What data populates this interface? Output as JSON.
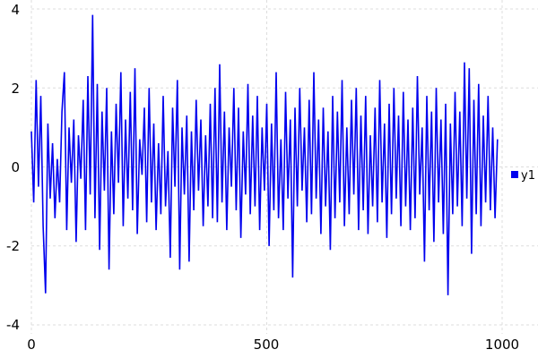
{
  "chart_data": {
    "type": "line",
    "title": "",
    "xlabel": "",
    "ylabel": "",
    "xlim": [
      0,
      1000
    ],
    "ylim": [
      -4,
      4
    ],
    "x_ticks": [
      "0",
      "500",
      "1000"
    ],
    "y_ticks": [
      "-4",
      "-2",
      "0",
      "2",
      "4"
    ],
    "grid": true,
    "legend_position": "right",
    "series": [
      {
        "name": "y1",
        "color": "#0000ee",
        "x_step": 5,
        "values": [
          0.9,
          -0.9,
          2.2,
          -0.5,
          1.8,
          -1.5,
          -3.2,
          1.1,
          -0.8,
          0.6,
          -1.3,
          0.2,
          -0.9,
          1.4,
          2.4,
          -1.6,
          1.0,
          -0.4,
          1.2,
          -1.9,
          0.8,
          -0.3,
          1.7,
          -1.6,
          2.3,
          -0.7,
          3.85,
          -1.3,
          2.1,
          -2.1,
          1.4,
          -0.6,
          2.0,
          -2.6,
          0.9,
          -1.2,
          1.6,
          -0.4,
          2.4,
          -1.5,
          1.2,
          -0.8,
          1.9,
          -1.1,
          2.5,
          -1.7,
          0.7,
          -0.2,
          1.5,
          -1.4,
          2.0,
          -0.9,
          1.1,
          -1.6,
          0.6,
          -1.2,
          1.8,
          -1.0,
          0.4,
          -2.3,
          1.5,
          -0.5,
          2.2,
          -2.6,
          1.0,
          -0.7,
          1.3,
          -2.4,
          0.9,
          -1.1,
          1.7,
          -0.6,
          1.2,
          -1.5,
          0.8,
          -1.0,
          1.6,
          -1.3,
          2.0,
          -1.4,
          2.6,
          -0.9,
          1.4,
          -1.6,
          1.0,
          -0.5,
          2.0,
          -1.1,
          1.5,
          -1.8,
          0.9,
          -0.7,
          2.1,
          -1.2,
          1.3,
          -1.0,
          1.8,
          -1.6,
          1.0,
          -0.6,
          1.6,
          -2.0,
          1.1,
          -1.1,
          2.4,
          -1.3,
          0.7,
          -1.6,
          1.9,
          -0.8,
          1.2,
          -2.8,
          1.5,
          -1.0,
          2.0,
          -0.6,
          1.0,
          -1.4,
          1.7,
          -1.2,
          2.4,
          -0.8,
          1.2,
          -1.7,
          1.5,
          -1.0,
          0.9,
          -2.1,
          1.8,
          -1.3,
          1.4,
          -0.9,
          2.2,
          -1.5,
          1.0,
          -1.2,
          1.7,
          -0.7,
          2.0,
          -1.6,
          1.3,
          -1.1,
          1.8,
          -1.7,
          0.8,
          -1.0,
          1.5,
          -1.4,
          2.2,
          -0.9,
          1.1,
          -1.8,
          1.6,
          -1.2,
          2.0,
          -0.8,
          1.3,
          -1.5,
          1.9,
          -1.0,
          1.2,
          -1.6,
          1.5,
          -1.3,
          2.3,
          -0.7,
          1.0,
          -2.4,
          1.8,
          -1.1,
          1.4,
          -1.9,
          2.0,
          -0.9,
          1.2,
          -1.7,
          1.6,
          -3.25,
          1.1,
          -1.2,
          1.9,
          -1.0,
          1.4,
          -1.5,
          2.65,
          -0.8,
          2.5,
          -2.2,
          1.7,
          -1.2,
          2.1,
          -1.5,
          1.3,
          -0.9,
          1.8,
          -1.1,
          1.0,
          -1.3,
          0.7
        ]
      }
    ]
  }
}
